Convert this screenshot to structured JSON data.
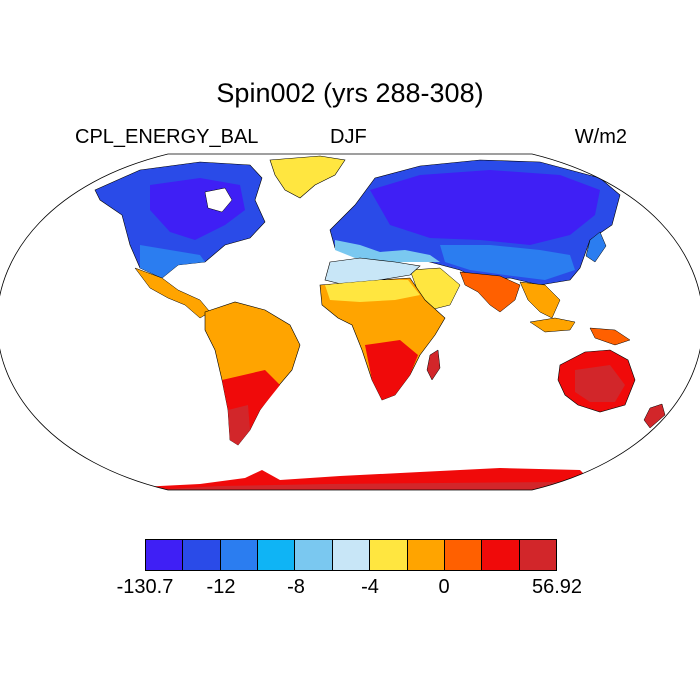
{
  "title": "Spin002 (yrs 288-308)",
  "left_label": "CPL_ENERGY_BAL",
  "center_label": "DJF",
  "right_label": "W/m2",
  "colorbar": {
    "colors": [
      "#3f1ff5",
      "#2a4be8",
      "#2b7df0",
      "#0fb4f5",
      "#7ac8f0",
      "#c8e6f7",
      "#ffe640",
      "#ffa400",
      "#ff6000",
      "#f00a0a",
      "#d2262a"
    ],
    "tick_labels": [
      "-130.7",
      "-12",
      "-8",
      "-4",
      "0",
      "56.92"
    ]
  }
}
